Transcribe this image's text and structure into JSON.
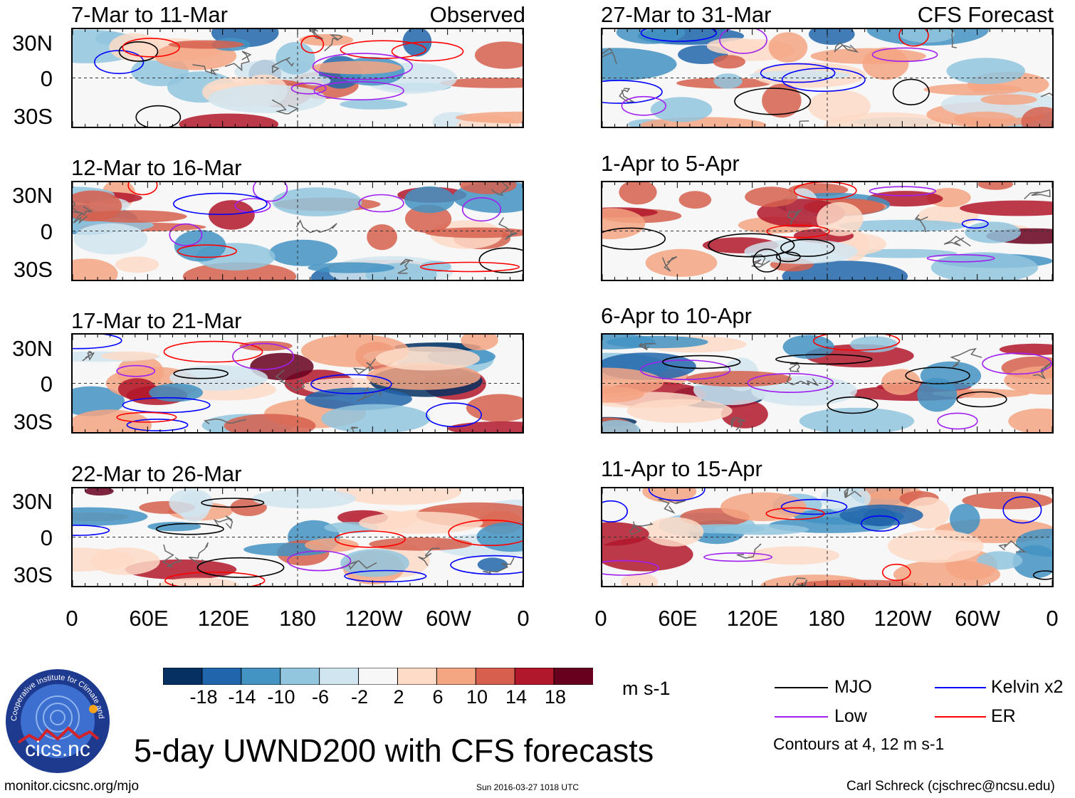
{
  "panels_left": [
    {
      "title": "7-Mar to 11-Mar",
      "tag": "Observed"
    },
    {
      "title": "12-Mar to 16-Mar",
      "tag": ""
    },
    {
      "title": "17-Mar to 21-Mar",
      "tag": ""
    },
    {
      "title": "22-Mar to 26-Mar",
      "tag": ""
    }
  ],
  "panels_right": [
    {
      "title": "27-Mar to 31-Mar",
      "tag": "CFS Forecast"
    },
    {
      "title": "1-Apr to 5-Apr",
      "tag": ""
    },
    {
      "title": "6-Apr to 10-Apr",
      "tag": ""
    },
    {
      "title": "11-Apr to 15-Apr",
      "tag": ""
    }
  ],
  "lat_labels": [
    "30N",
    "0",
    "30S"
  ],
  "lon_labels": [
    "0",
    "60E",
    "120E",
    "180",
    "120W",
    "60W",
    "0"
  ],
  "colorbar": {
    "colors": [
      "#053061",
      "#2166ac",
      "#4393c3",
      "#92c5de",
      "#d1e5f0",
      "#f7f7f7",
      "#fddbc7",
      "#f4a582",
      "#d6604d",
      "#b2182b",
      "#67001f"
    ],
    "tick_labels": [
      "-18",
      "-14",
      "-10",
      "-6",
      "-2",
      "2",
      "6",
      "10",
      "14",
      "18"
    ],
    "units": "m s-1"
  },
  "legend": {
    "items": [
      {
        "label": "MJO",
        "color": "#000000"
      },
      {
        "label": "Kelvin x2",
        "color": "#0000ff"
      },
      {
        "label": "Low",
        "color": "#a020f0"
      },
      {
        "label": "ER",
        "color": "#ff0000"
      }
    ],
    "note": "Contours at 4, 12 m s-1"
  },
  "logo_text": "cics.nc",
  "logo_ring_text": "Cooperative Institute for Climate and Satellites",
  "main_title": "5-day UWND200 with CFS forecasts",
  "footer": {
    "url": "monitor.cicsnc.org/mjo",
    "timestamp": "Sun 2016-03-27 1018 UTC",
    "author": "Carl Schreck (cjschrec@ncsu.edu)"
  }
}
